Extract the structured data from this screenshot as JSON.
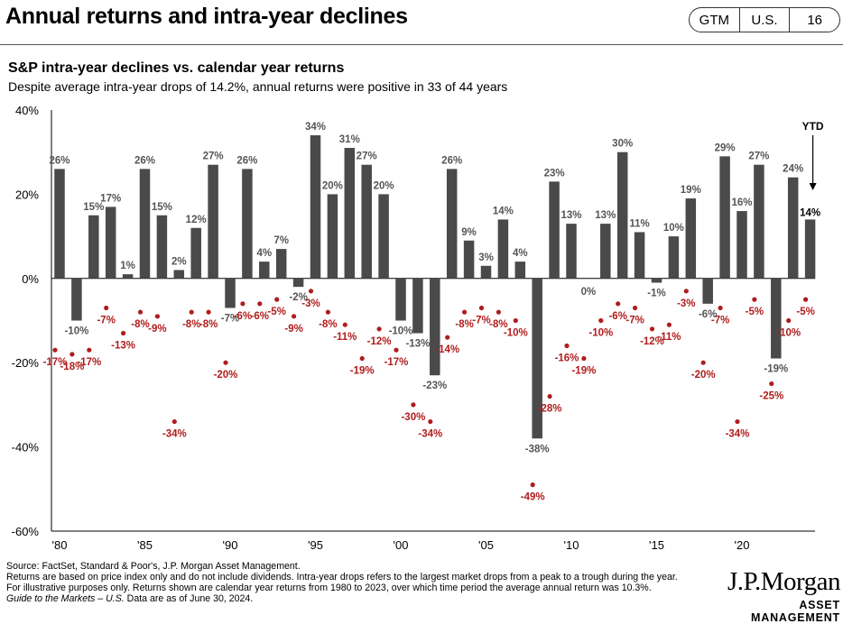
{
  "header": {
    "title": "Annual returns and intra-year declines",
    "badges": [
      "GTM",
      "U.S.",
      "16"
    ]
  },
  "chart_title": "S&P intra-year declines vs. calendar year returns",
  "chart_subtitle": "Despite average intra-year drops of 14.2%, annual returns were positive in 33 of 44 years",
  "colors": {
    "bar": "#4a4a4a",
    "decline": "#b01c1c",
    "axis": "#000000"
  },
  "chart_data": {
    "type": "bar",
    "x": [
      1980,
      1981,
      1982,
      1983,
      1984,
      1985,
      1986,
      1987,
      1988,
      1989,
      1990,
      1991,
      1992,
      1993,
      1994,
      1995,
      1996,
      1997,
      1998,
      1999,
      2000,
      2001,
      2002,
      2003,
      2004,
      2005,
      2006,
      2007,
      2008,
      2009,
      2010,
      2011,
      2012,
      2013,
      2014,
      2015,
      2016,
      2017,
      2018,
      2019,
      2020,
      2021,
      2022,
      2023,
      2024
    ],
    "x_tick_labels": [
      "'80",
      "'85",
      "'90",
      "'95",
      "'00",
      "'05",
      "'10",
      "'15",
      "'20"
    ],
    "x_tick_years": [
      1980,
      1985,
      1990,
      1995,
      2000,
      2005,
      2010,
      2015,
      2020
    ],
    "series": [
      {
        "values": [
          26,
          -10,
          15,
          17,
          1,
          26,
          15,
          2,
          12,
          27,
          -7,
          26,
          4,
          7,
          -2,
          34,
          20,
          31,
          27,
          20,
          -10,
          -13,
          -23,
          26,
          9,
          3,
          14,
          4,
          -38,
          23,
          13,
          0,
          13,
          30,
          11,
          -1,
          10,
          19,
          -6,
          29,
          16,
          27,
          -19,
          24,
          14
        ]
      },
      {
        "values": [
          -17,
          -18,
          -17,
          -7,
          -13,
          -8,
          -9,
          -34,
          -8,
          -8,
          -20,
          -6,
          -6,
          -5,
          -9,
          -3,
          -8,
          -11,
          -19,
          -12,
          -17,
          -30,
          -34,
          -14,
          -8,
          -7,
          -8,
          -10,
          -49,
          -28,
          -16,
          -19,
          -10,
          -6,
          -7,
          -12,
          -11,
          -3,
          -20,
          -7,
          -34,
          -5,
          -25,
          -10,
          -5
        ]
      }
    ],
    "bar_labels": [
      "26%",
      "-10%",
      "15%",
      "17%",
      "1%",
      "26%",
      "15%",
      "2%",
      "12%",
      "27%",
      "-7%",
      "26%",
      "4%",
      "7%",
      "-2%",
      "34%",
      "20%",
      "31%",
      "27%",
      "20%",
      "-10%",
      "-13%",
      "-23%",
      "26%",
      "9%",
      "3%",
      "14%",
      "4%",
      "-38%",
      "23%",
      "13%",
      "0%",
      "13%",
      "30%",
      "11%",
      "-1%",
      "10%",
      "19%",
      "-6%",
      "29%",
      "16%",
      "27%",
      "-19%",
      "24%",
      "14%"
    ],
    "decline_labels": [
      "-17%",
      "-18%",
      "-17%",
      "-7%",
      "-13%",
      "-8%",
      "-9%",
      "-34%",
      "-8%",
      "-8%",
      "-20%",
      "-6%",
      "-6%",
      "-5%",
      "-9%",
      "-3%",
      "-8%",
      "-11%",
      "-19%",
      "-12%",
      "-17%",
      "-30%",
      "-34%",
      "-14%",
      "-8%",
      "-7%",
      "-8%",
      "-10%",
      "-49%",
      "-28%",
      "-16%",
      "-19%",
      "-10%",
      "-6%",
      "-7%",
      "-12%",
      "-11%",
      "-3%",
      "-20%",
      "-7%",
      "-34%",
      "-5%",
      "-25%",
      "-10%",
      "-5%"
    ],
    "ylim": [
      -60,
      40
    ],
    "y_ticks": [
      40,
      20,
      0,
      -20,
      -40,
      -60
    ],
    "y_tick_labels": [
      "40%",
      "20%",
      "0%",
      "-20%",
      "-40%",
      "-60%"
    ],
    "annotation": "YTD",
    "grid": false
  },
  "footnotes": {
    "source": "Source: FactSet, Standard & Poor's, J.P. Morgan Asset Management.",
    "note": "Returns are based on price index only and do not include dividends. Intra-year drops refers to the largest market drops from a peak to a trough during the year. For illustrative purposes only. Returns shown are calendar year returns from 1980 to 2023, over which time period the average annual return was 10.3%.",
    "guide": "Guide to the Markets – U.S.",
    "data_as_of": " Data are as of June 30, 2024."
  },
  "logo": {
    "name": "J.P.Morgan",
    "sub": "ASSET MANAGEMENT"
  }
}
